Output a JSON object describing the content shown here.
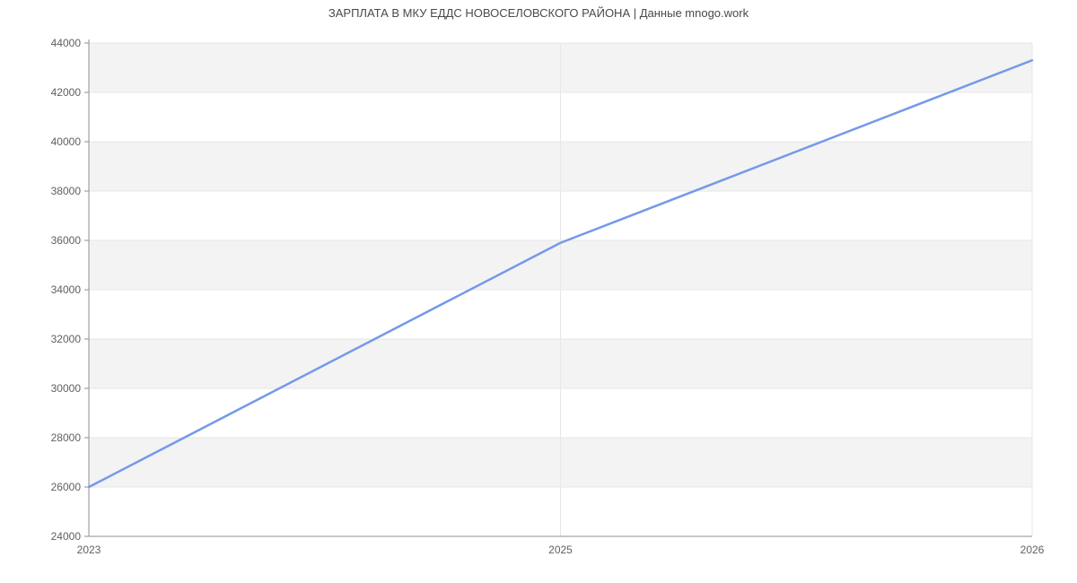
{
  "chart_data": {
    "type": "line",
    "title": "ЗАРПЛАТА В МКУ ЕДДС НОВОСЕЛОВСКОГО РАЙОНА | Данные mnogo.work",
    "categories": [
      "2023",
      "2025",
      "2026"
    ],
    "series": [
      {
        "values": [
          26000,
          35900,
          43300
        ]
      }
    ],
    "xlabel": "",
    "ylabel": "",
    "ylim": [
      24000,
      44000
    ],
    "y_tick_step": 2000,
    "y_tick_labels": [
      "24000",
      "26000",
      "28000",
      "30000",
      "32000",
      "34000",
      "36000",
      "38000",
      "40000",
      "42000",
      "44000"
    ],
    "grid": true,
    "legend": "none",
    "plot_bands_alternating": true,
    "colors": {
      "line": "#7499e9",
      "band": "#f3f3f3",
      "gridline": "#e7e7e7",
      "axis": "#8f8f8f",
      "tick_label": "#5f5f5f",
      "title": "#4a4a4a",
      "background": "#ffffff"
    }
  }
}
